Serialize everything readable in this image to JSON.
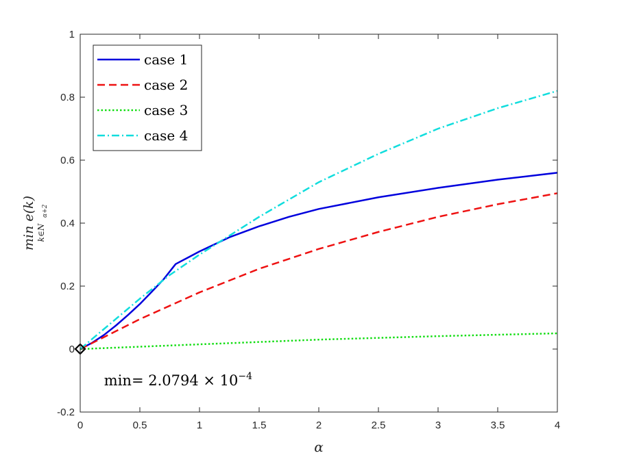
{
  "chart_data": {
    "type": "line",
    "title": "",
    "xlabel": "α",
    "ylabel": "min e(k)",
    "ylabel_subscript": "k∈N",
    "ylabel_subscript_sub": "α+2",
    "xlim": [
      0,
      4
    ],
    "ylim": [
      -0.2,
      1
    ],
    "xticks": [
      0,
      0.5,
      1,
      1.5,
      2,
      2.5,
      3,
      3.5,
      4
    ],
    "xtick_labels": [
      "0",
      "0.5",
      "1",
      "1.5",
      "2",
      "2.5",
      "3",
      "3.5",
      "4"
    ],
    "yticks": [
      -0.2,
      0,
      0.2,
      0.4,
      0.6,
      0.8,
      1
    ],
    "ytick_labels": [
      "-0.2",
      "0",
      "0.2",
      "0.4",
      "0.6",
      "0.8",
      "1"
    ],
    "grid": false,
    "legend_position": "top-left",
    "series": [
      {
        "name": "case 1",
        "color": "#0000dd",
        "style": "solid",
        "x": [
          0,
          0.1,
          0.2,
          0.3,
          0.4,
          0.5,
          0.6,
          0.7,
          0.8,
          0.9,
          1.0,
          1.25,
          1.5,
          1.75,
          2.0,
          2.5,
          3.0,
          3.5,
          4.0
        ],
        "y": [
          0,
          0.02,
          0.045,
          0.075,
          0.108,
          0.143,
          0.182,
          0.222,
          0.27,
          0.29,
          0.31,
          0.355,
          0.39,
          0.42,
          0.445,
          0.482,
          0.512,
          0.538,
          0.56
        ]
      },
      {
        "name": "case 2",
        "color": "#ee1111",
        "style": "dashed",
        "x": [
          0,
          0.5,
          1.0,
          1.5,
          2.0,
          2.5,
          3.0,
          3.5,
          4.0
        ],
        "y": [
          0,
          0.095,
          0.18,
          0.255,
          0.318,
          0.372,
          0.42,
          0.46,
          0.495
        ]
      },
      {
        "name": "case 3",
        "color": "#11dd11",
        "style": "dotted",
        "x": [
          0,
          1,
          2,
          3,
          4
        ],
        "y": [
          0,
          0.015,
          0.03,
          0.041,
          0.05
        ]
      },
      {
        "name": "case 4",
        "color": "#11dddd",
        "style": "dashdot",
        "x": [
          0,
          0.25,
          0.5,
          0.75,
          1.0,
          1.5,
          2.0,
          2.5,
          3.0,
          3.5,
          4.0
        ],
        "y": [
          0,
          0.08,
          0.16,
          0.235,
          0.3,
          0.42,
          0.53,
          0.62,
          0.7,
          0.765,
          0.82
        ]
      }
    ],
    "marker": {
      "x": 0,
      "y": 0.00020794,
      "shape": "diamond"
    },
    "annotation": {
      "prefix": "min= 2.0794 × 10",
      "exponent": "−4",
      "x": 0.2,
      "y": -0.1
    }
  }
}
